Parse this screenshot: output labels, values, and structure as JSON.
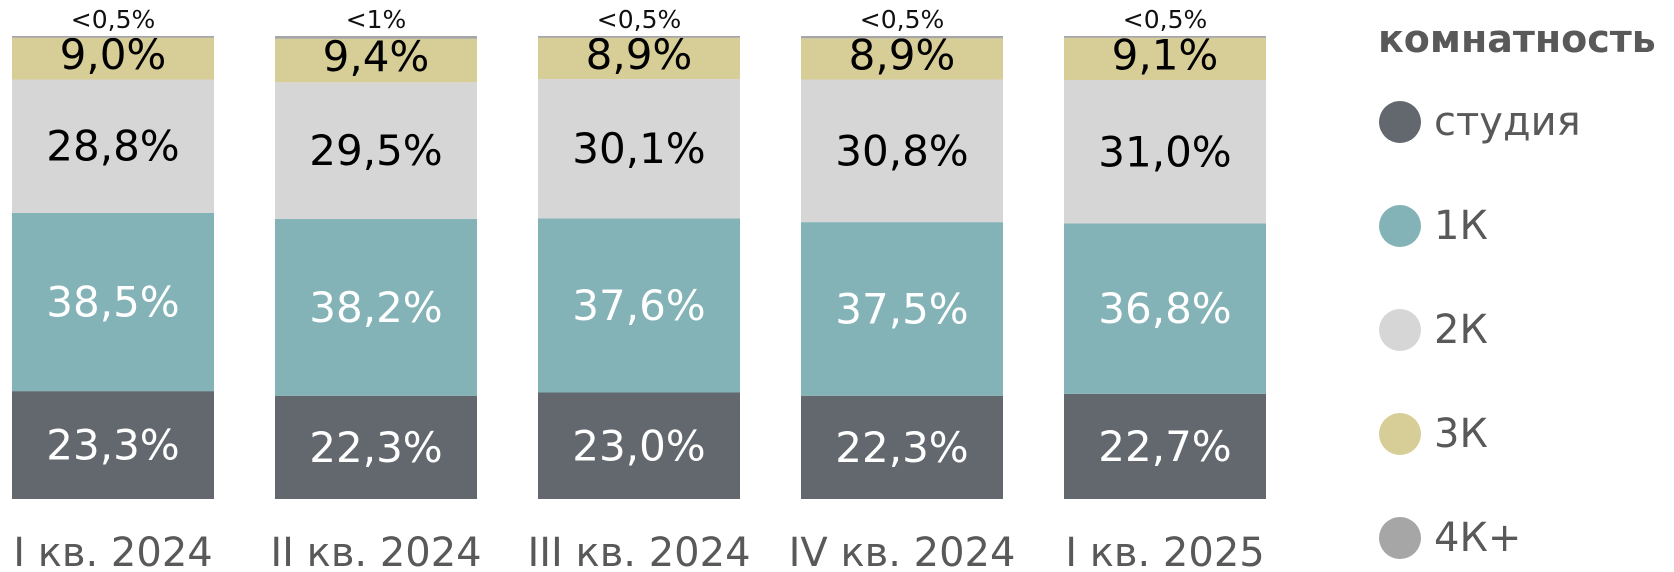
{
  "chart_data": {
    "type": "bar",
    "stacked": true,
    "normalized": true,
    "categories": [
      "I кв. 2024",
      "II кв. 2024",
      "III кв. 2024",
      "IV кв. 2024",
      "I кв. 2025"
    ],
    "series": [
      {
        "name": "студия",
        "color": "#63686e",
        "values": [
          23.3,
          22.3,
          23.0,
          22.3,
          22.7
        ],
        "labels": [
          "23,3%",
          "22,3%",
          "23,0%",
          "22,3%",
          "22,7%"
        ],
        "label_color": "#ffffff"
      },
      {
        "name": "1К",
        "color": "#83b3b7",
        "values": [
          38.5,
          38.2,
          37.6,
          37.5,
          36.8
        ],
        "labels": [
          "38,5%",
          "38,2%",
          "37,6%",
          "37,5%",
          "36,8%"
        ],
        "label_color": "#ffffff"
      },
      {
        "name": "2К",
        "color": "#d6d6d6",
        "values": [
          28.8,
          29.5,
          30.1,
          30.8,
          31.0
        ],
        "labels": [
          "28,8%",
          "29,5%",
          "30,1%",
          "30,8%",
          "31,0%"
        ],
        "label_color": "#000000"
      },
      {
        "name": "3К",
        "color": "#d7cd96",
        "values": [
          9.0,
          9.4,
          8.9,
          8.9,
          9.1
        ],
        "labels": [
          "9,0%",
          "9,4%",
          "8,9%",
          "8,9%",
          "9,1%"
        ],
        "label_color": "#000000"
      },
      {
        "name": "4К+",
        "color": "#a6a6a6",
        "values": [
          0.4,
          0.6,
          0.4,
          0.5,
          0.4
        ],
        "labels": [
          "<0,5%",
          "<1%",
          "<0,5%",
          "<0,5%",
          "<0,5%"
        ],
        "label_color": "#000000"
      }
    ],
    "legend": {
      "title": "комнатность",
      "position": "right"
    },
    "grid": false
  }
}
